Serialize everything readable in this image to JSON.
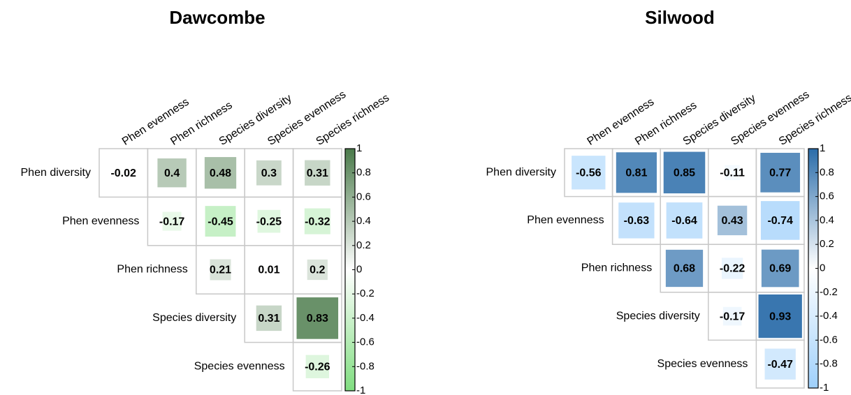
{
  "chart_data": [
    {
      "type": "corrplot",
      "title": "Dawcombe",
      "rows": [
        "Phen diversity",
        "Phen evenness",
        "Phen richness",
        "Species diversity",
        "Species evenness"
      ],
      "columns": [
        "Phen evenness",
        "Phen richness",
        "Species diversity",
        "Species evenness",
        "Species richness"
      ],
      "values": [
        [
          -0.02,
          0.4,
          0.48,
          0.3,
          0.31
        ],
        [
          null,
          -0.17,
          -0.45,
          -0.25,
          -0.32
        ],
        [
          null,
          null,
          0.21,
          0.01,
          0.2
        ],
        [
          null,
          null,
          null,
          0.31,
          0.83
        ],
        [
          null,
          null,
          null,
          null,
          -0.26
        ]
      ],
      "clim": [
        -1,
        1
      ],
      "cticks": [
        1,
        0.8,
        0.6,
        0.4,
        0.2,
        0,
        -0.2,
        -0.4,
        -0.6,
        -0.8,
        -1
      ],
      "colors": [
        "#80dd80",
        "#ffffff",
        "#4a7a4a"
      ]
    },
    {
      "type": "corrplot",
      "title": "Silwood",
      "rows": [
        "Phen diversity",
        "Phen evenness",
        "Phen richness",
        "Species diversity",
        "Species evenness"
      ],
      "columns": [
        "Phen evenness",
        "Phen richness",
        "Species diversity",
        "Species evenness",
        "Species richness"
      ],
      "values": [
        [
          -0.56,
          0.81,
          0.85,
          -0.11,
          0.77
        ],
        [
          null,
          -0.63,
          -0.64,
          0.43,
          -0.74
        ],
        [
          null,
          null,
          0.68,
          -0.22,
          0.69
        ],
        [
          null,
          null,
          null,
          -0.17,
          0.93
        ],
        [
          null,
          null,
          null,
          null,
          -0.47
        ]
      ],
      "clim": [
        -1,
        1
      ],
      "cticks": [
        1,
        0.8,
        0.6,
        0.4,
        0.2,
        0,
        -0.2,
        -0.4,
        -0.6,
        -0.8,
        -1
      ],
      "colors": [
        "#9fd0fb",
        "#ffffff",
        "#2a6ca9"
      ]
    }
  ]
}
